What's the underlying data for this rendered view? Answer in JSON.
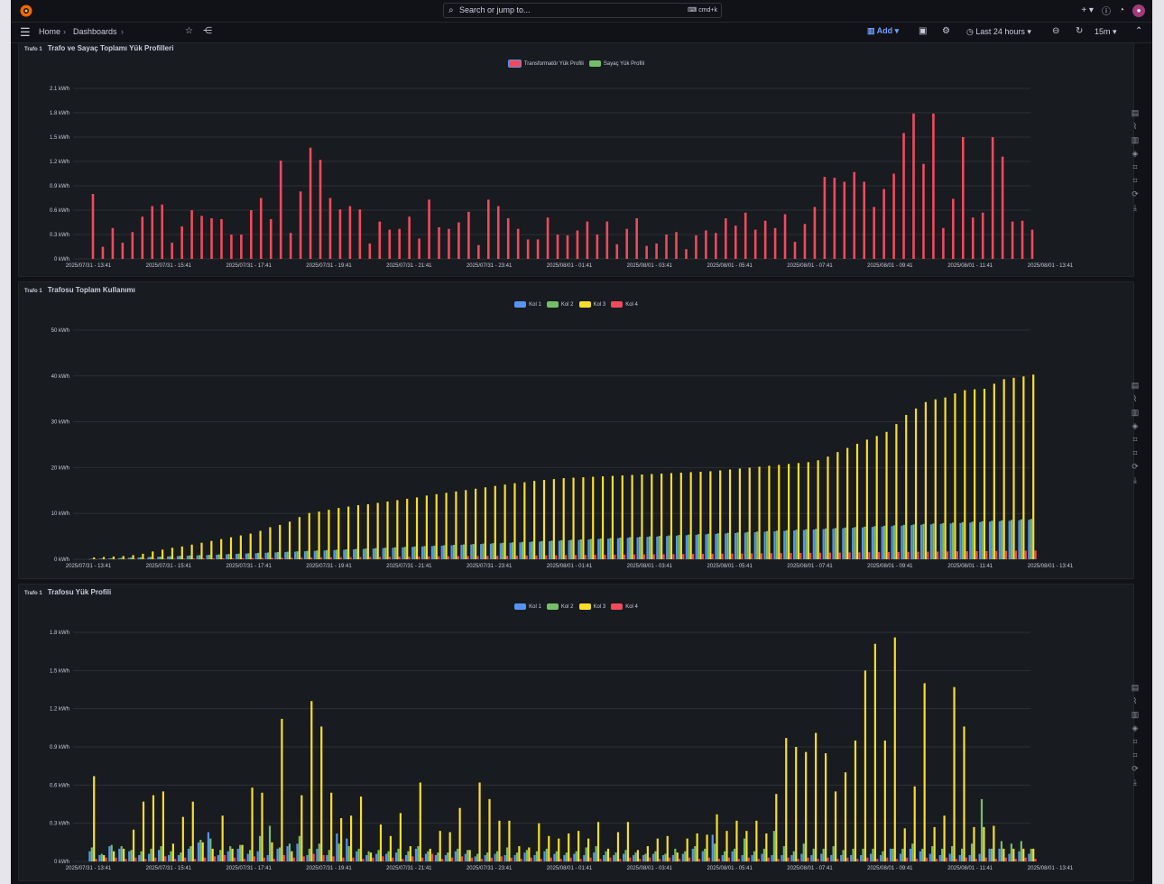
{
  "topbar": {
    "search_placeholder": "Search or jump to...",
    "search_shortcut": "cmd+k",
    "plus_label": "+ ▾",
    "help_icon": "help-icon",
    "news_icon": "rss-icon"
  },
  "navbar": {
    "breadcrumb": [
      "Home",
      "Dashboards"
    ],
    "add_label": "Add",
    "time_range": "Last 24 hours",
    "refresh_interval": "15m"
  },
  "panels": [
    {
      "prefix": "Trafo 1",
      "title": "Trafo ve Sayaç Toplamı Yük Profilleri"
    },
    {
      "prefix": "Trafo 1",
      "title": "Trafosu Toplam Kullanımı"
    },
    {
      "prefix": "Trafo 1",
      "title": "Trafosu Yük Profili"
    }
  ],
  "colors": {
    "kol1": "#5794f2",
    "kol2": "#73bf69",
    "kol3": "#fade2a",
    "kol4": "#f2495c",
    "trafo": "#f2495c",
    "sayac": "#73bf69",
    "accent": "#6e9fff"
  },
  "chart_data": [
    {
      "type": "bar",
      "title": "Trafo ve Sayaç Toplamı Yük Profilleri",
      "unit": "kWh",
      "y_ticks": [
        "0 kWh",
        "0.3 kWh",
        "0.6 kWh",
        "0.9 kWh",
        "1.2 kWh",
        "1.5 kWh",
        "1.8 kWh",
        "2.1 kWh"
      ],
      "ylim": [
        0,
        2.1
      ],
      "x_ticks": [
        "2025/07/31 - 13:41",
        "2025/07/31 - 15:41",
        "2025/07/31 - 17:41",
        "2025/07/31 - 19:41",
        "2025/07/31 - 21:41",
        "2025/07/31 - 23:41",
        "2025/08/01 - 01:41",
        "2025/08/01 - 03:41",
        "2025/08/01 - 05:41",
        "2025/08/01 - 07:41",
        "2025/08/01 - 09:41",
        "2025/08/01 - 11:41",
        "2025/08/01 - 13:41"
      ],
      "legend": [
        "Transformatör Yük Profili",
        "Sayaç Yük Profili"
      ],
      "series": [
        {
          "name": "Transformatör Yük Profili",
          "color": "#f2495c",
          "values": [
            0.8,
            0.15,
            0.38,
            0.2,
            0.33,
            0.52,
            0.65,
            0.67,
            0.2,
            0.4,
            0.6,
            0.53,
            0.5,
            0.49,
            0.3,
            0.3,
            0.6,
            0.75,
            0.49,
            1.21,
            0.32,
            0.83,
            1.37,
            1.22,
            0.75,
            0.61,
            0.65,
            0.61,
            0.19,
            0.46,
            0.36,
            0.37,
            0.52,
            0.25,
            0.73,
            0.39,
            0.37,
            0.45,
            0.58,
            0.17,
            0.73,
            0.65,
            0.5,
            0.37,
            0.24,
            0.24,
            0.51,
            0.3,
            0.29,
            0.35,
            0.46,
            0.3,
            0.46,
            0.18,
            0.37,
            0.5,
            0.16,
            0.19,
            0.3,
            0.33,
            0.12,
            0.29,
            0.35,
            0.32,
            0.5,
            0.41,
            0.57,
            0.36,
            0.47,
            0.38,
            0.55,
            0.21,
            0.43,
            0.64,
            1.01,
            1.0,
            0.95,
            1.07,
            0.95,
            0.64,
            0.86,
            1.05,
            1.55,
            1.79,
            1.17,
            1.79,
            0.38,
            0.74,
            1.5,
            0.51,
            0.57,
            1.5,
            1.26,
            0.46,
            0.47,
            0.36
          ]
        },
        {
          "name": "Sayaç Yük Profili",
          "color": "#73bf69",
          "values": []
        }
      ]
    },
    {
      "type": "bar",
      "title": "Trafosu Toplam Kullanımı",
      "unit": "kWh",
      "y_ticks": [
        "0 kWh",
        "10 kWh",
        "20 kWh",
        "30 kWh",
        "40 kWh",
        "50 kWh"
      ],
      "ylim": [
        0,
        50
      ],
      "x_ticks": [
        "2025/07/31 - 13:41",
        "2025/07/31 - 15:41",
        "2025/07/31 - 17:41",
        "2025/07/31 - 19:41",
        "2025/07/31 - 21:41",
        "2025/07/31 - 23:41",
        "2025/08/01 - 01:41",
        "2025/08/01 - 03:41",
        "2025/08/01 - 05:41",
        "2025/08/01 - 07:41",
        "2025/08/01 - 09:41",
        "2025/08/01 - 11:41",
        "2025/08/01 - 13:41"
      ],
      "legend": [
        "Kol 1",
        "Kol 2",
        "Kol 3",
        "Kol 4"
      ],
      "series": [
        {
          "name": "Kol 1",
          "color": "#5794f2",
          "start": 0.05,
          "end": 8.6
        },
        {
          "name": "Kol 2",
          "color": "#73bf69",
          "start": 0.1,
          "end": 8.8
        },
        {
          "name": "Kol 3",
          "color": "#fade2a",
          "values": [
            0.4,
            0.5,
            0.6,
            0.7,
            0.9,
            1.2,
            1.7,
            2.1,
            2.5,
            2.8,
            3.2,
            3.6,
            4.0,
            4.4,
            4.8,
            5.2,
            5.6,
            6.2,
            7.0,
            7.5,
            8.2,
            9.2,
            10.1,
            10.4,
            10.8,
            11.2,
            11.5,
            11.8,
            12.0,
            12.3,
            12.6,
            12.9,
            13.2,
            13.5,
            13.9,
            14.2,
            14.5,
            14.8,
            15.1,
            15.4,
            15.7,
            16.0,
            16.3,
            16.6,
            16.8,
            17.1,
            17.3,
            17.5,
            17.7,
            17.8,
            17.9,
            18.0,
            18.1,
            18.2,
            18.3,
            18.4,
            18.5,
            18.6,
            18.7,
            18.8,
            18.9,
            19.0,
            19.1,
            19.2,
            19.4,
            19.6,
            19.8,
            20.0,
            20.2,
            20.4,
            20.6,
            20.8,
            21.0,
            21.2,
            21.6,
            22.4,
            23.4,
            24.3,
            25.2,
            26.1,
            26.9,
            27.8,
            29.5,
            31.5,
            32.9,
            34.3,
            34.9,
            35.3,
            36.2,
            36.9,
            37.1,
            37.2,
            38.3,
            39.3,
            39.6,
            39.9,
            40.3
          ]
        },
        {
          "name": "Kol 4",
          "color": "#f2495c",
          "start": 0.02,
          "end": 1.9
        }
      ]
    },
    {
      "type": "bar",
      "title": "Trafosu Yük Profili",
      "unit": "kWh",
      "y_ticks": [
        "0 kWh",
        "0.3 kWh",
        "0.6 kWh",
        "0.9 kWh",
        "1.2 kWh",
        "1.5 kWh",
        "1.8 kWh"
      ],
      "ylim": [
        0,
        1.8
      ],
      "x_ticks": [
        "2025/07/31 - 13:41",
        "2025/07/31 - 15:41",
        "2025/07/31 - 17:41",
        "2025/07/31 - 19:41",
        "2025/07/31 - 21:41",
        "2025/07/31 - 23:41",
        "2025/08/01 - 01:41",
        "2025/08/01 - 03:41",
        "2025/08/01 - 05:41",
        "2025/08/01 - 07:41",
        "2025/08/01 - 09:41",
        "2025/08/01 - 11:41",
        "2025/08/01 - 13:41"
      ],
      "legend": [
        "Kol 1",
        "Kol 2",
        "Kol 3",
        "Kol 4"
      ],
      "series": [
        {
          "name": "Kol 1",
          "color": "#5794f2",
          "values": [
            0.08,
            0.05,
            0.12,
            0.1,
            0.08,
            0.05,
            0.06,
            0.09,
            0.05,
            0.05,
            0.1,
            0.15,
            0.23,
            0.05,
            0.08,
            0.1,
            0.06,
            0.08,
            0.05,
            0.1,
            0.12,
            0.14,
            0.05,
            0.1,
            0.05,
            0.22,
            0.18,
            0.08,
            0.05,
            0.06,
            0.06,
            0.07,
            0.05,
            0.1,
            0.06,
            0.05,
            0.05,
            0.08,
            0.06,
            0.04,
            0.05,
            0.06,
            0.05,
            0.05,
            0.07,
            0.05,
            0.08,
            0.06,
            0.05,
            0.06,
            0.05,
            0.07,
            0.05,
            0.05,
            0.06,
            0.05,
            0.05,
            0.06,
            0.05,
            0.05,
            0.06,
            0.1,
            0.08,
            0.21,
            0.05,
            0.08,
            0.05,
            0.05,
            0.06,
            0.05,
            0.05,
            0.05,
            0.06,
            0.05,
            0.06,
            0.05,
            0.05,
            0.05,
            0.05,
            0.06,
            0.05,
            0.1,
            0.06,
            0.1,
            0.08,
            0.06,
            0.05,
            0.06,
            0.05,
            0.05,
            0.06,
            0.1,
            0.1,
            0.06,
            0.08,
            0.06
          ]
        },
        {
          "name": "Kol 2",
          "color": "#73bf69",
          "values": [
            0.11,
            0.06,
            0.13,
            0.12,
            0.09,
            0.08,
            0.1,
            0.12,
            0.08,
            0.07,
            0.12,
            0.17,
            0.18,
            0.09,
            0.12,
            0.13,
            0.09,
            0.2,
            0.28,
            0.11,
            0.14,
            0.2,
            0.1,
            0.14,
            0.09,
            0.14,
            0.12,
            0.1,
            0.08,
            0.09,
            0.08,
            0.1,
            0.08,
            0.12,
            0.08,
            0.07,
            0.07,
            0.1,
            0.09,
            0.06,
            0.07,
            0.08,
            0.11,
            0.07,
            0.09,
            0.08,
            0.1,
            0.08,
            0.07,
            0.08,
            0.11,
            0.12,
            0.08,
            0.07,
            0.09,
            0.07,
            0.06,
            0.08,
            0.06,
            0.1,
            0.08,
            0.12,
            0.1,
            0.14,
            0.08,
            0.1,
            0.18,
            0.08,
            0.1,
            0.24,
            0.12,
            0.08,
            0.14,
            0.1,
            0.1,
            0.12,
            0.09,
            0.1,
            0.1,
            0.1,
            0.08,
            0.1,
            0.1,
            0.14,
            0.1,
            0.12,
            0.1,
            0.12,
            0.1,
            0.14,
            0.49,
            0.1,
            0.16,
            0.14,
            0.16,
            0.1
          ]
        },
        {
          "name": "Kol 3",
          "color": "#fade2a",
          "values": [
            0.67,
            0.05,
            0.08,
            0.1,
            0.25,
            0.47,
            0.52,
            0.55,
            0.14,
            0.35,
            0.47,
            0.15,
            0.1,
            0.36,
            0.1,
            0.13,
            0.58,
            0.54,
            0.15,
            1.12,
            0.08,
            0.52,
            1.26,
            1.06,
            0.54,
            0.34,
            0.36,
            0.51,
            0.07,
            0.29,
            0.2,
            0.38,
            0.12,
            0.62,
            0.1,
            0.24,
            0.23,
            0.42,
            0.09,
            0.62,
            0.49,
            0.32,
            0.32,
            0.12,
            0.11,
            0.3,
            0.2,
            0.18,
            0.22,
            0.24,
            0.18,
            0.31,
            0.1,
            0.23,
            0.31,
            0.09,
            0.12,
            0.18,
            0.2,
            0.07,
            0.18,
            0.22,
            0.21,
            0.37,
            0.24,
            0.32,
            0.24,
            0.32,
            0.22,
            0.53,
            0.97,
            0.9,
            0.86,
            1.01,
            0.85,
            0.55,
            0.7,
            0.95,
            1.5,
            1.71,
            0.95,
            1.76,
            0.26,
            0.59,
            1.4,
            0.27,
            0.36,
            1.37,
            1.06,
            0.27,
            0.27,
            0.28,
            0.1,
            0.1,
            0.1,
            0.1
          ]
        },
        {
          "name": "Kol 4",
          "color": "#f2495c",
          "values": [
            0.02,
            0.03,
            0.03,
            0.02,
            0.03,
            0.02,
            0.03,
            0.04,
            0.02,
            0.03,
            0.02,
            0.03,
            0.04,
            0.05,
            0.03,
            0.02,
            0.04,
            0.03,
            0.02,
            0.05,
            0.03,
            0.04,
            0.06,
            0.05,
            0.04,
            0.03,
            0.03,
            0.02,
            0.03,
            0.04,
            0.03,
            0.02,
            0.04,
            0.03,
            0.06,
            0.02,
            0.03,
            0.04,
            0.03,
            0.02,
            0.03,
            0.04,
            0.03,
            0.02,
            0.03,
            0.02,
            0.03,
            0.02,
            0.03,
            0.02,
            0.03,
            0.02,
            0.03,
            0.02,
            0.03,
            0.02,
            0.03,
            0.02,
            0.03,
            0.02,
            0.03,
            0.02,
            0.03,
            0.02,
            0.03,
            0.02,
            0.03,
            0.02,
            0.03,
            0.02,
            0.03,
            0.02,
            0.03,
            0.02,
            0.03,
            0.02,
            0.03,
            0.02,
            0.03,
            0.02,
            0.03,
            0.02,
            0.03,
            0.02,
            0.03,
            0.02,
            0.03,
            0.02,
            0.03,
            0.02,
            0.03,
            0.02,
            0.03,
            0.02,
            0.03,
            0.02
          ]
        }
      ]
    }
  ]
}
